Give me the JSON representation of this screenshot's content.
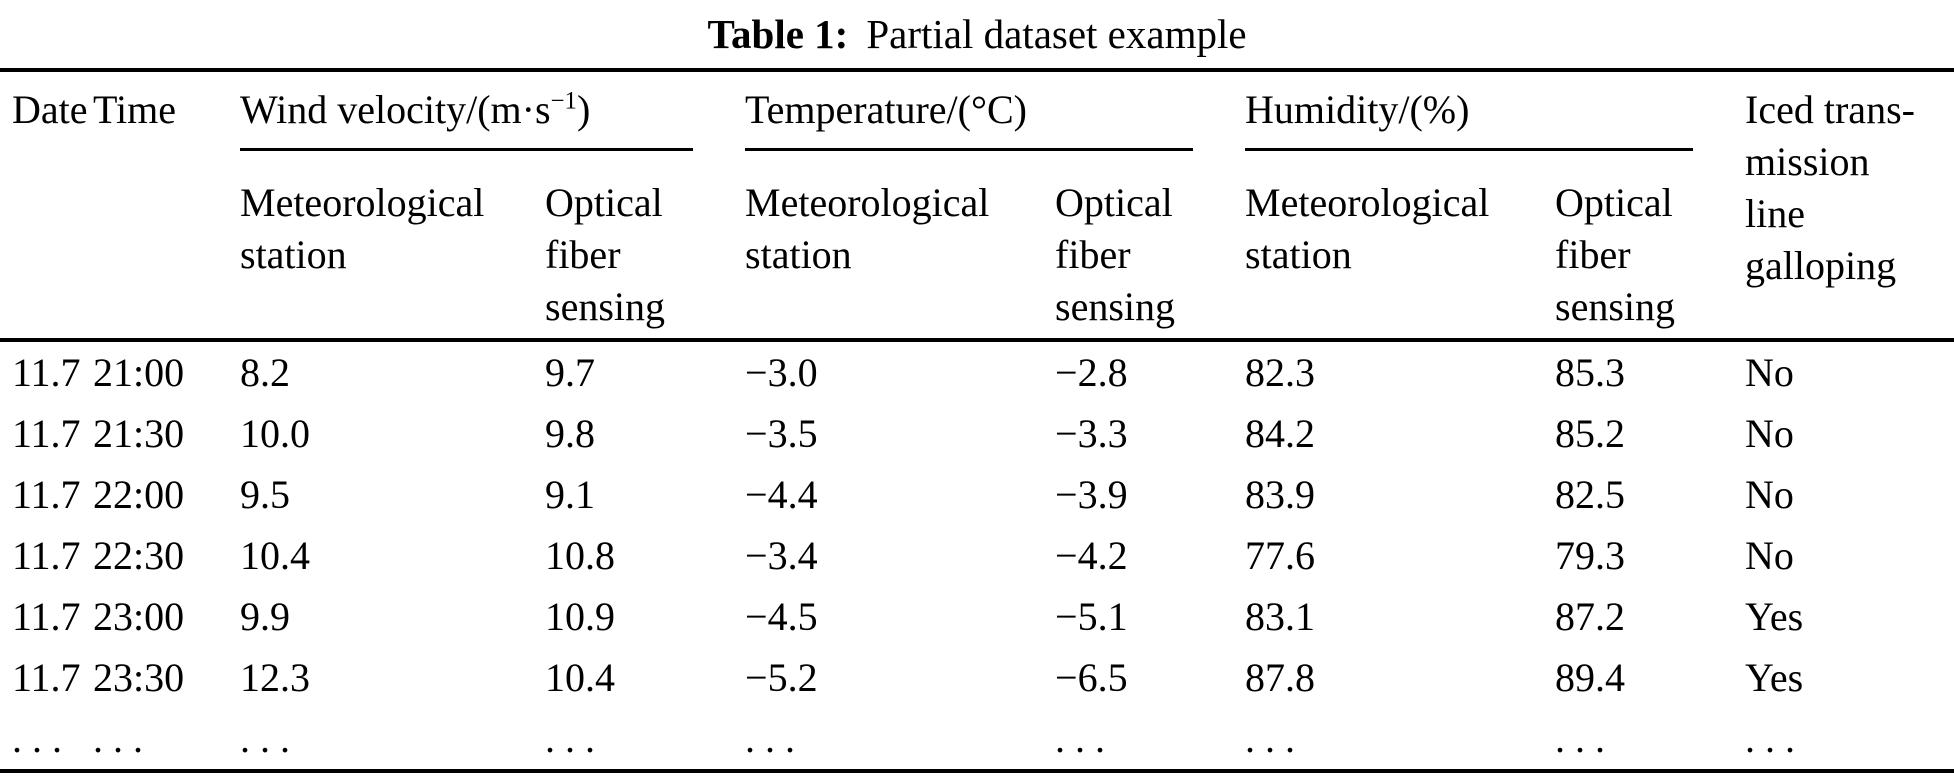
{
  "caption": {
    "label": "Table 1:",
    "text": "Partial dataset example"
  },
  "table": {
    "headers": {
      "date": "Date",
      "time": "Time",
      "galloping": "Iced trans-\nmission\nline\ngalloping"
    },
    "groups": [
      {
        "label_pre": "Wind velocity/(m·s",
        "label_sup": "−1",
        "label_post": ")",
        "subs": [
          "Meteorological\nstation",
          "Optical\nfiber\nsensing"
        ]
      },
      {
        "label_pre": "Temperature/(°C)",
        "label_sup": "",
        "label_post": "",
        "subs": [
          "Meteorological\nstation",
          "Optical\nfiber\nsensing"
        ]
      },
      {
        "label_pre": "Humidity/(%)",
        "label_sup": "",
        "label_post": "",
        "subs": [
          "Meteorological\nstation",
          "Optical\nfiber\nsensing"
        ]
      }
    ],
    "rows": [
      [
        "11.7",
        "21:00",
        "8.2",
        "9.7",
        "−3.0",
        "−2.8",
        "82.3",
        "85.3",
        "No"
      ],
      [
        "11.7",
        "21:30",
        "10.0",
        "9.8",
        "−3.5",
        "−3.3",
        "84.2",
        "85.2",
        "No"
      ],
      [
        "11.7",
        "22:00",
        "9.5",
        "9.1",
        "−4.4",
        "−3.9",
        "83.9",
        "82.5",
        "No"
      ],
      [
        "11.7",
        "22:30",
        "10.4",
        "10.8",
        "−3.4",
        "−4.2",
        "77.6",
        "79.3",
        "No"
      ],
      [
        "11.7",
        "23:00",
        "9.9",
        "10.9",
        "−4.5",
        "−5.1",
        "83.1",
        "87.2",
        "Yes"
      ],
      [
        "11.7",
        "23:30",
        "12.3",
        "10.4",
        "−5.2",
        "−6.5",
        "87.8",
        "89.4",
        "Yes"
      ],
      [
        ". . .",
        ". . .",
        ". . .",
        ". . .",
        ". . .",
        ". . .",
        ". . .",
        ". . .",
        ". . ."
      ]
    ]
  }
}
